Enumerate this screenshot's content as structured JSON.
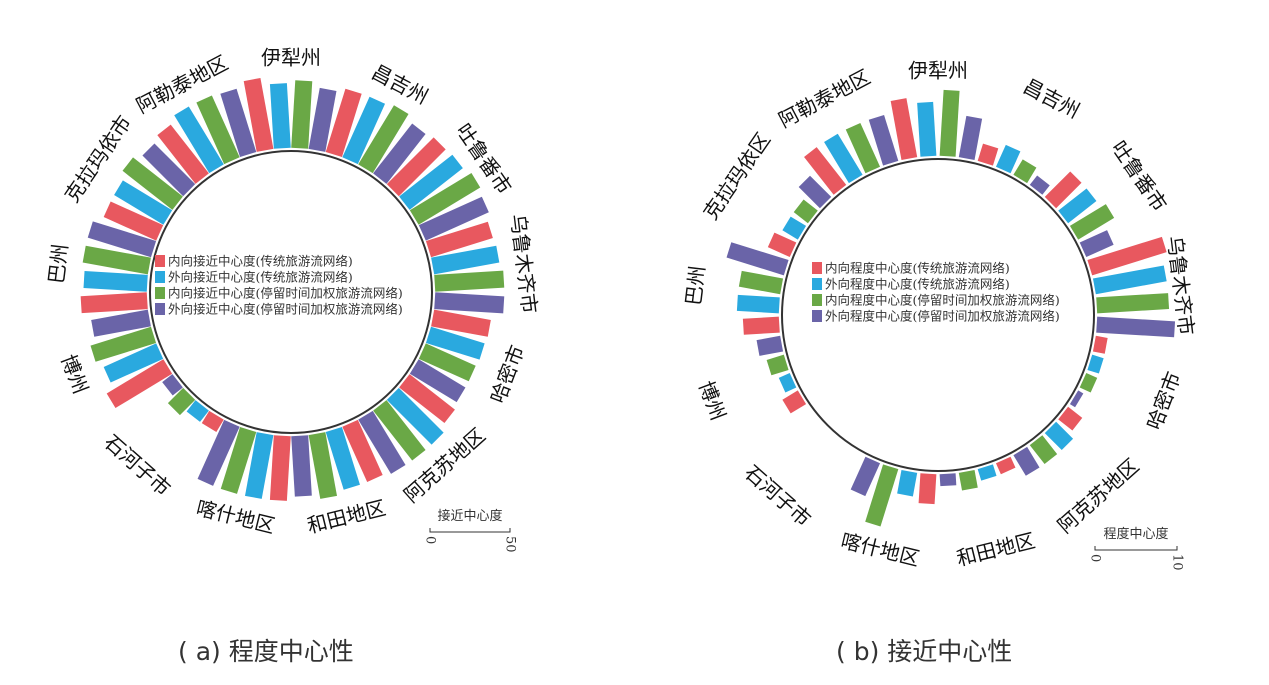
{
  "colors": {
    "series1": "#e8585f",
    "series2": "#2aa9df",
    "series3": "#6aa846",
    "series4": "#6a64a8",
    "circle": "#333333"
  },
  "captions": {
    "a": "( a) 程度中心性",
    "b": "( b) 接近中心性"
  },
  "chart_data": [
    {
      "type": "bar",
      "layout": "radial",
      "categories": [
        "伊犁州",
        "昌吉州",
        "吐鲁番市",
        "乌鲁木齐市",
        "哈密市",
        "阿克苏地区",
        "和田地区",
        "喀什地区",
        "石河子市",
        "博州",
        "巴州",
        "克拉玛依市",
        "阿勒泰地区"
      ],
      "series": [
        {
          "name": "内向接近中心度(传统旅游流网络)",
          "values": [
            50,
            46,
            46,
            45,
            40,
            40,
            42,
            45,
            10,
            46,
            46,
            40,
            43
          ]
        },
        {
          "name": "外向接近中心度(传统旅游流网络)",
          "values": [
            45,
            46,
            47,
            46,
            39,
            44,
            42,
            45,
            10,
            40,
            44,
            40,
            47
          ]
        },
        {
          "name": "内向接近中心度(停留时间加权旅游流网络)",
          "values": [
            47,
            48,
            50,
            48,
            38,
            44,
            45,
            45,
            15,
            44,
            46,
            44,
            47
          ]
        },
        {
          "name": "外向接近中心度(停留时间加权旅游流网络)",
          "values": [
            43,
            44,
            48,
            48,
            38,
            44,
            42,
            45,
            9,
            40,
            46,
            40,
            46
          ]
        }
      ],
      "scale": {
        "title": "接近中心度",
        "ticks": [
          "0",
          "50"
        ],
        "max": 50
      }
    },
    {
      "type": "bar",
      "layout": "radial",
      "categories": [
        "伊犁州",
        "昌吉州",
        "吐鲁番市",
        "乌鲁木齐市",
        "哈密市",
        "阿克苏地区",
        "和田地区",
        "喀什地区",
        "石河子市",
        "博州",
        "巴州",
        "克拉玛依区",
        "阿勒泰地区"
      ],
      "series": [
        {
          "name": "内向程度中心度(传统旅游流网络)",
          "values": [
            10,
            3,
            6,
            13,
            2,
            3,
            2,
            5,
            0,
            3,
            6,
            4,
            8
          ]
        },
        {
          "name": "外向程度中心度(传统旅游流网络)",
          "values": [
            9,
            4,
            6,
            12,
            2,
            4,
            2,
            4,
            0,
            2,
            7,
            3,
            8
          ]
        },
        {
          "name": "内向程度中心度(停留时间加权旅游流网络)",
          "values": [
            11,
            3,
            7,
            12,
            2,
            4,
            3,
            10,
            0,
            3,
            7,
            3,
            8
          ]
        },
        {
          "name": "外向程度中心度(停留时间加权旅游流网络)",
          "values": [
            7,
            2,
            5,
            13,
            1,
            4,
            2,
            6,
            0,
            4,
            10,
            5,
            8
          ]
        }
      ],
      "scale": {
        "title": "程度中心度",
        "ticks": [
          "0",
          "10"
        ],
        "max": 10
      }
    }
  ]
}
